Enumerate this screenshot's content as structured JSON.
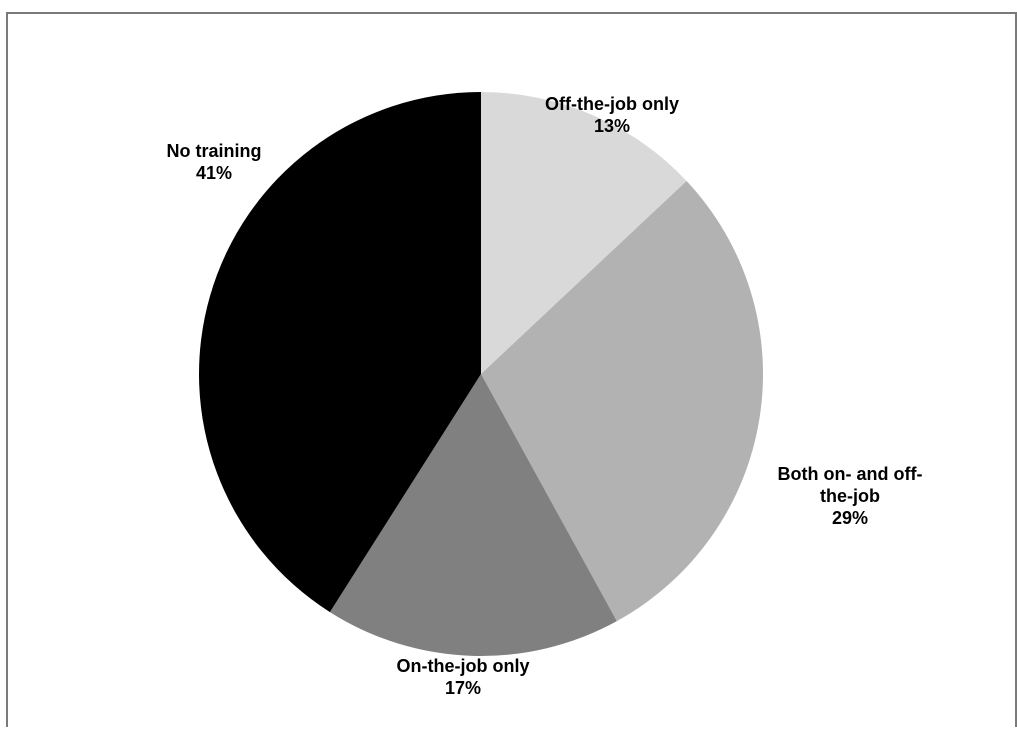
{
  "chart_data": {
    "type": "pie",
    "slices": [
      {
        "label": [
          "Off-the-job only"
        ],
        "value_label": "13%",
        "value": 13,
        "color": "#d9d9d9"
      },
      {
        "label": [
          "Both on- and off-",
          "the-job"
        ],
        "value_label": "29%",
        "value": 29,
        "color": "#b2b2b2"
      },
      {
        "label": [
          "On-the-job only"
        ],
        "value_label": "17%",
        "value": 17,
        "color": "#808080"
      },
      {
        "label": [
          "No training"
        ],
        "value_label": "41%",
        "value": 41,
        "color": "#000000"
      }
    ],
    "start": "12 o'clock",
    "direction": "clockwise",
    "legend": "none",
    "title": ""
  }
}
